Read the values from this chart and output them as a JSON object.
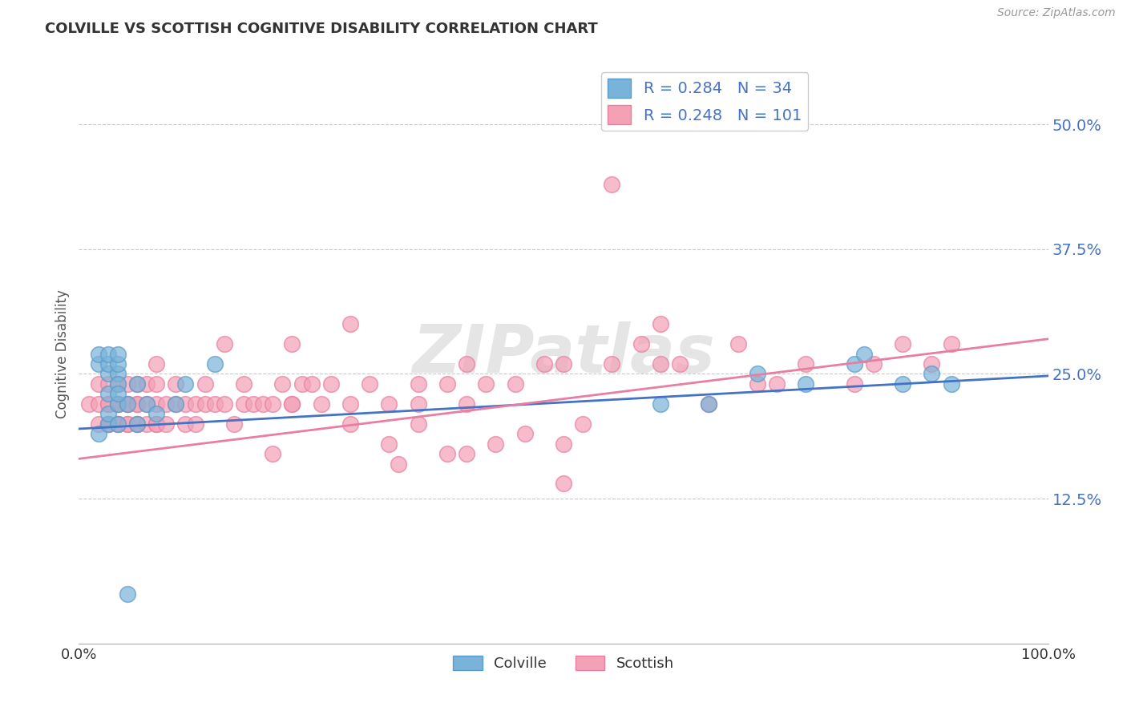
{
  "title": "COLVILLE VS SCOTTISH COGNITIVE DISABILITY CORRELATION CHART",
  "source": "Source: ZipAtlas.com",
  "ylabel": "Cognitive Disability",
  "xlim": [
    0.0,
    1.0
  ],
  "ylim": [
    -0.02,
    0.56
  ],
  "yticks": [
    0.125,
    0.25,
    0.375,
    0.5
  ],
  "ytick_labels": [
    "12.5%",
    "25.0%",
    "37.5%",
    "50.0%"
  ],
  "colville_color": "#7ab3d9",
  "colville_edge": "#5b9bc8",
  "scottish_color": "#f4a0b5",
  "scottish_edge": "#e87ea1",
  "colville_line_color": "#4472c4",
  "scottish_line_color": "#e87ea1",
  "R_colville": 0.284,
  "N_colville": 34,
  "R_scottish": 0.248,
  "N_scottish": 101,
  "legend_label_colville": "Colville",
  "legend_label_scottish": "Scottish",
  "watermark": "ZIPatlas",
  "background_color": "#ffffff",
  "grid_color": "#bbbbbb",
  "title_color": "#333333",
  "title_fontsize": 13,
  "colville_x": [
    0.02,
    0.02,
    0.03,
    0.03,
    0.03,
    0.03,
    0.04,
    0.04,
    0.04,
    0.04,
    0.02,
    0.03,
    0.03,
    0.04,
    0.04,
    0.05,
    0.06,
    0.06,
    0.07,
    0.08,
    0.1,
    0.11,
    0.14,
    0.04,
    0.8,
    0.81,
    0.85,
    0.88,
    0.65,
    0.7,
    0.75,
    0.9,
    0.6,
    0.05
  ],
  "colville_y": [
    0.26,
    0.27,
    0.25,
    0.26,
    0.27,
    0.23,
    0.25,
    0.26,
    0.27,
    0.24,
    0.19,
    0.2,
    0.21,
    0.2,
    0.22,
    0.22,
    0.24,
    0.2,
    0.22,
    0.21,
    0.22,
    0.24,
    0.26,
    0.23,
    0.26,
    0.27,
    0.24,
    0.25,
    0.22,
    0.25,
    0.24,
    0.24,
    0.22,
    0.03
  ],
  "scottish_x": [
    0.01,
    0.02,
    0.02,
    0.02,
    0.03,
    0.03,
    0.03,
    0.03,
    0.03,
    0.04,
    0.04,
    0.04,
    0.04,
    0.04,
    0.04,
    0.05,
    0.05,
    0.05,
    0.05,
    0.05,
    0.06,
    0.06,
    0.06,
    0.06,
    0.06,
    0.07,
    0.07,
    0.07,
    0.08,
    0.08,
    0.08,
    0.08,
    0.09,
    0.09,
    0.1,
    0.1,
    0.11,
    0.11,
    0.12,
    0.12,
    0.13,
    0.13,
    0.14,
    0.15,
    0.16,
    0.17,
    0.17,
    0.18,
    0.19,
    0.2,
    0.21,
    0.22,
    0.23,
    0.24,
    0.25,
    0.26,
    0.28,
    0.3,
    0.32,
    0.35,
    0.38,
    0.4,
    0.42,
    0.45,
    0.48,
    0.5,
    0.55,
    0.58,
    0.6,
    0.62,
    0.65,
    0.68,
    0.7,
    0.72,
    0.75,
    0.8,
    0.82,
    0.85,
    0.88,
    0.9,
    0.46,
    0.52,
    0.33,
    0.38,
    0.43,
    0.22,
    0.28,
    0.22,
    0.35,
    0.4,
    0.5,
    0.32,
    0.6,
    0.28,
    0.15,
    0.08,
    0.4,
    0.35,
    0.2,
    0.5,
    0.55
  ],
  "scottish_y": [
    0.22,
    0.2,
    0.22,
    0.24,
    0.2,
    0.22,
    0.22,
    0.24,
    0.2,
    0.2,
    0.22,
    0.22,
    0.24,
    0.2,
    0.22,
    0.2,
    0.22,
    0.24,
    0.2,
    0.22,
    0.2,
    0.22,
    0.22,
    0.24,
    0.2,
    0.2,
    0.22,
    0.24,
    0.2,
    0.22,
    0.24,
    0.2,
    0.22,
    0.2,
    0.22,
    0.24,
    0.2,
    0.22,
    0.2,
    0.22,
    0.22,
    0.24,
    0.22,
    0.22,
    0.2,
    0.22,
    0.24,
    0.22,
    0.22,
    0.22,
    0.24,
    0.22,
    0.24,
    0.24,
    0.22,
    0.24,
    0.22,
    0.24,
    0.22,
    0.24,
    0.24,
    0.26,
    0.24,
    0.24,
    0.26,
    0.26,
    0.26,
    0.28,
    0.26,
    0.26,
    0.22,
    0.28,
    0.24,
    0.24,
    0.26,
    0.24,
    0.26,
    0.28,
    0.26,
    0.28,
    0.19,
    0.2,
    0.16,
    0.17,
    0.18,
    0.22,
    0.2,
    0.28,
    0.2,
    0.22,
    0.18,
    0.18,
    0.3,
    0.3,
    0.28,
    0.26,
    0.17,
    0.22,
    0.17,
    0.14,
    0.44
  ]
}
